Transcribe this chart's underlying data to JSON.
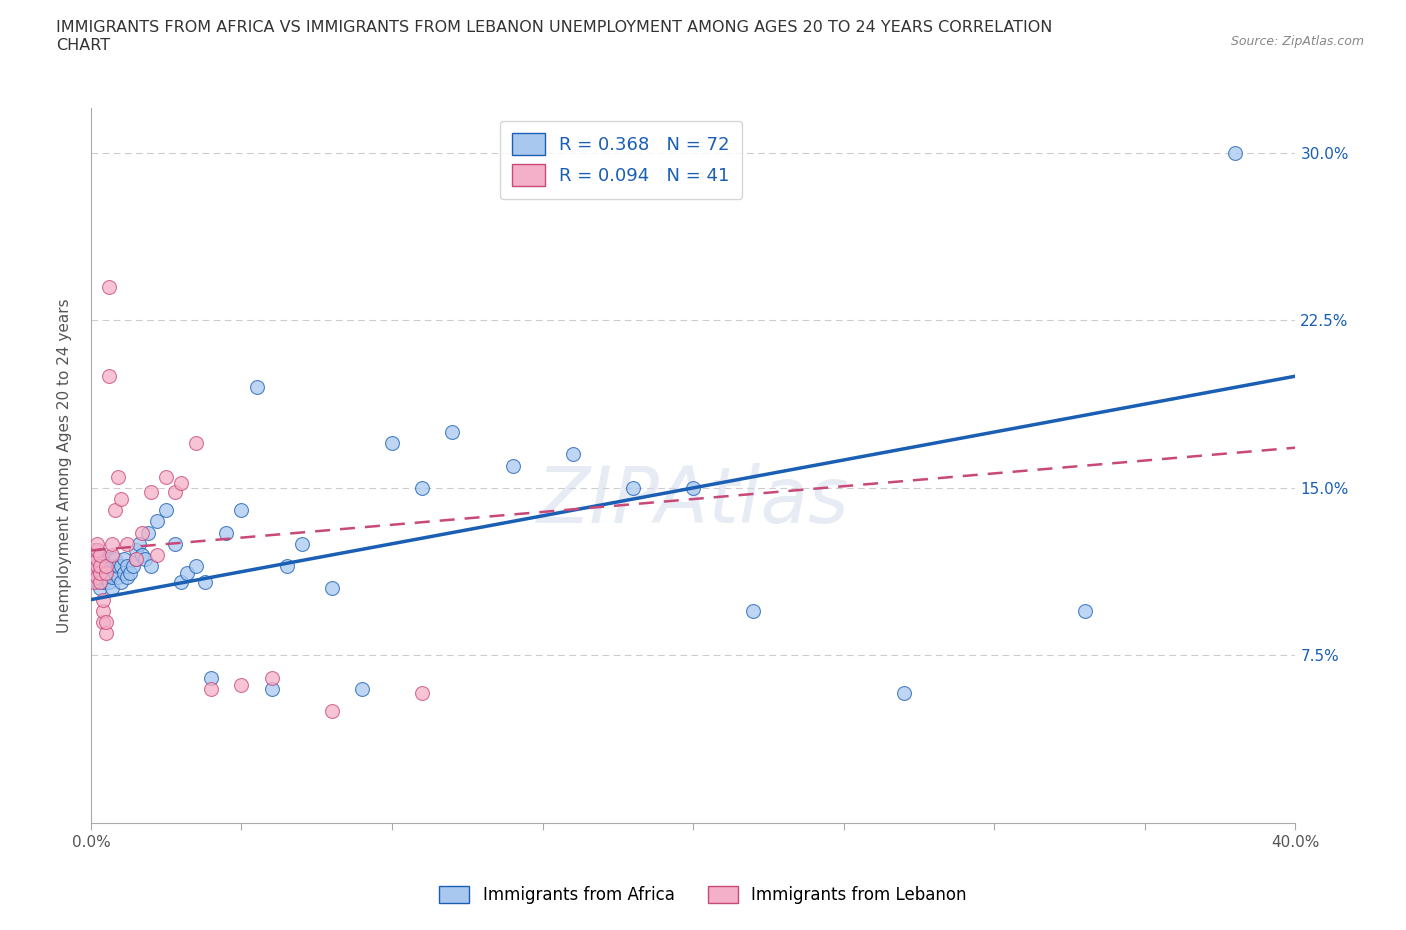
{
  "title": "IMMIGRANTS FROM AFRICA VS IMMIGRANTS FROM LEBANON UNEMPLOYMENT AMONG AGES 20 TO 24 YEARS CORRELATION\nCHART",
  "source_text": "Source: ZipAtlas.com",
  "ylabel": "Unemployment Among Ages 20 to 24 years",
  "xlim": [
    0.0,
    0.4
  ],
  "ylim": [
    0.0,
    0.32
  ],
  "xticks": [
    0.0,
    0.05,
    0.1,
    0.15,
    0.2,
    0.25,
    0.3,
    0.35,
    0.4
  ],
  "yticks": [
    0.0,
    0.075,
    0.15,
    0.225,
    0.3
  ],
  "right_ytick_labels": [
    "",
    "7.5%",
    "15.0%",
    "22.5%",
    "30.0%"
  ],
  "africa_color": "#a8c8f0",
  "lebanon_color": "#f4b0c8",
  "trend_blue": "#1a5fb4",
  "trend_pink": "#c84878",
  "africa_R": 0.368,
  "africa_N": 72,
  "lebanon_R": 0.094,
  "lebanon_N": 41,
  "legend_label_africa": "Immigrants from Africa",
  "legend_label_lebanon": "Immigrants from Lebanon",
  "watermark": "ZIPAtlas",
  "blue_line_x0": 0.0,
  "blue_line_y0": 0.1,
  "blue_line_x1": 0.4,
  "blue_line_y1": 0.2,
  "pink_line_x0": 0.0,
  "pink_line_y0": 0.122,
  "pink_line_x1": 0.4,
  "pink_line_y1": 0.168,
  "africa_x": [
    0.001,
    0.001,
    0.001,
    0.002,
    0.002,
    0.002,
    0.002,
    0.002,
    0.003,
    0.003,
    0.003,
    0.003,
    0.003,
    0.004,
    0.004,
    0.004,
    0.004,
    0.005,
    0.005,
    0.005,
    0.006,
    0.006,
    0.006,
    0.007,
    0.007,
    0.007,
    0.008,
    0.008,
    0.009,
    0.009,
    0.01,
    0.01,
    0.011,
    0.011,
    0.012,
    0.012,
    0.013,
    0.014,
    0.015,
    0.015,
    0.016,
    0.017,
    0.018,
    0.019,
    0.02,
    0.022,
    0.025,
    0.028,
    0.03,
    0.032,
    0.035,
    0.038,
    0.04,
    0.045,
    0.05,
    0.055,
    0.06,
    0.065,
    0.07,
    0.08,
    0.09,
    0.1,
    0.11,
    0.12,
    0.14,
    0.16,
    0.18,
    0.2,
    0.22,
    0.27,
    0.33,
    0.38
  ],
  "africa_y": [
    0.11,
    0.115,
    0.118,
    0.108,
    0.112,
    0.115,
    0.118,
    0.122,
    0.105,
    0.11,
    0.112,
    0.115,
    0.12,
    0.108,
    0.112,
    0.115,
    0.118,
    0.11,
    0.112,
    0.115,
    0.108,
    0.112,
    0.118,
    0.105,
    0.11,
    0.115,
    0.112,
    0.118,
    0.11,
    0.115,
    0.108,
    0.115,
    0.112,
    0.118,
    0.11,
    0.115,
    0.112,
    0.115,
    0.118,
    0.122,
    0.125,
    0.12,
    0.118,
    0.13,
    0.115,
    0.135,
    0.14,
    0.125,
    0.108,
    0.112,
    0.115,
    0.108,
    0.065,
    0.13,
    0.14,
    0.195,
    0.06,
    0.115,
    0.125,
    0.105,
    0.06,
    0.17,
    0.15,
    0.175,
    0.16,
    0.165,
    0.15,
    0.15,
    0.095,
    0.058,
    0.095,
    0.3
  ],
  "lebanon_x": [
    0.001,
    0.001,
    0.001,
    0.001,
    0.002,
    0.002,
    0.002,
    0.002,
    0.002,
    0.003,
    0.003,
    0.003,
    0.003,
    0.004,
    0.004,
    0.004,
    0.005,
    0.005,
    0.005,
    0.005,
    0.006,
    0.006,
    0.007,
    0.007,
    0.008,
    0.009,
    0.01,
    0.012,
    0.015,
    0.017,
    0.02,
    0.022,
    0.025,
    0.028,
    0.03,
    0.035,
    0.04,
    0.05,
    0.06,
    0.08,
    0.11
  ],
  "lebanon_y": [
    0.108,
    0.112,
    0.118,
    0.122,
    0.11,
    0.115,
    0.118,
    0.122,
    0.125,
    0.108,
    0.112,
    0.115,
    0.12,
    0.09,
    0.095,
    0.1,
    0.085,
    0.09,
    0.112,
    0.115,
    0.2,
    0.24,
    0.12,
    0.125,
    0.14,
    0.155,
    0.145,
    0.125,
    0.118,
    0.13,
    0.148,
    0.12,
    0.155,
    0.148,
    0.152,
    0.17,
    0.06,
    0.062,
    0.065,
    0.05,
    0.058
  ]
}
